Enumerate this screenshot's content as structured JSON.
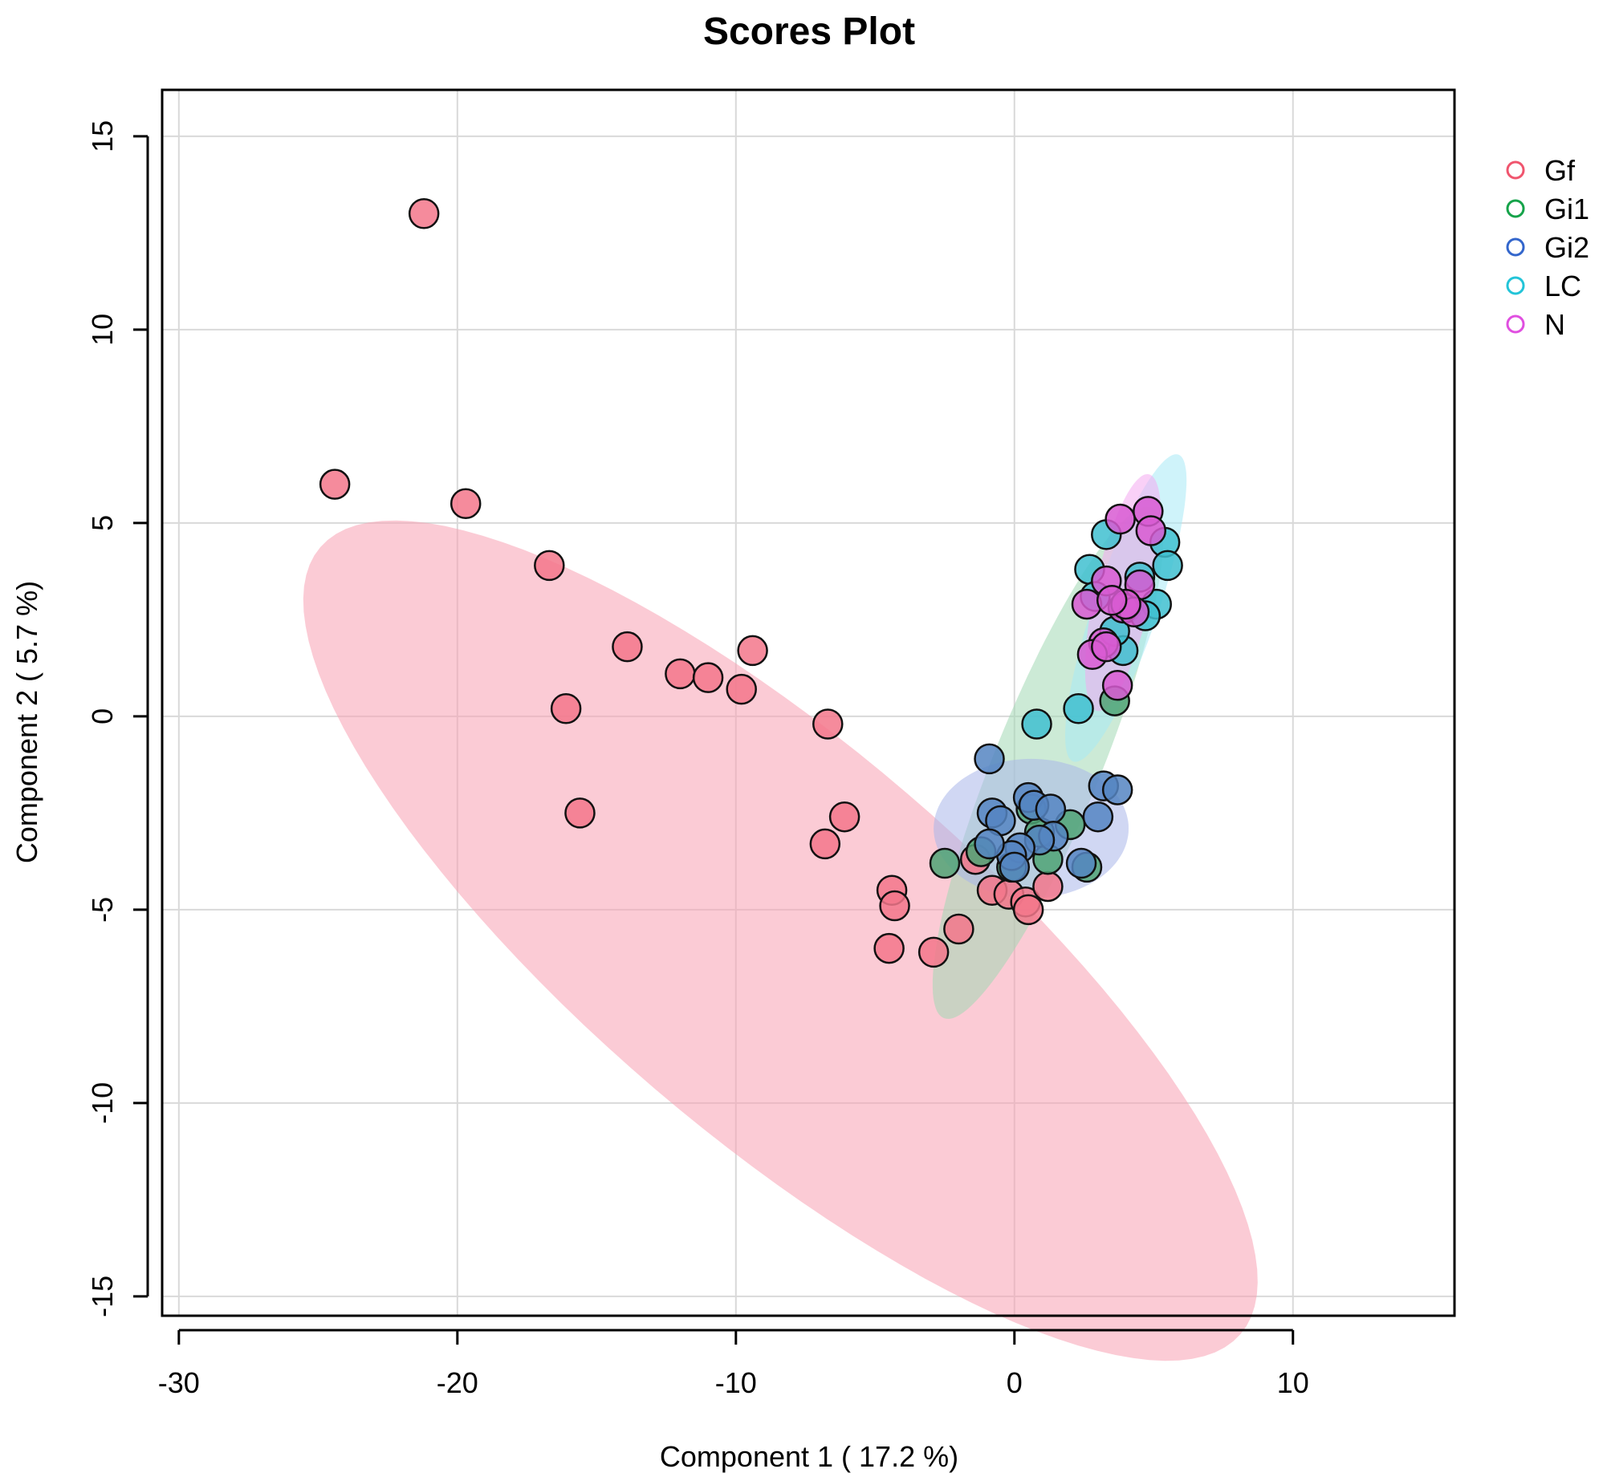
{
  "chart_data": {
    "type": "scatter",
    "title": "Scores Plot",
    "xlabel": "Component 1 ( 17.2 %)",
    "ylabel": "Component 2 ( 5.7 %)",
    "xlim": [
      -30.6,
      15.8
    ],
    "ylim": [
      -15.5,
      16.2
    ],
    "xticks": [
      -30,
      -20,
      -10,
      0,
      10
    ],
    "yticks": [
      -15,
      -10,
      -5,
      0,
      5,
      10,
      15
    ],
    "grid": true,
    "legend_position": "right",
    "series": [
      {
        "name": "Gf",
        "color": "#F0556E",
        "fill": "#F3778B",
        "points": [
          [
            -21.2,
            13.0
          ],
          [
            -24.4,
            6.0
          ],
          [
            -19.7,
            5.5
          ],
          [
            -16.7,
            3.9
          ],
          [
            -13.9,
            1.8
          ],
          [
            -9.4,
            1.7
          ],
          [
            -12.0,
            1.1
          ],
          [
            -11.0,
            1.0
          ],
          [
            -9.8,
            0.7
          ],
          [
            -16.1,
            0.2
          ],
          [
            -6.7,
            -0.2
          ],
          [
            -15.6,
            -2.5
          ],
          [
            -6.1,
            -2.6
          ],
          [
            -6.8,
            -3.3
          ],
          [
            -4.4,
            -4.5
          ],
          [
            -4.3,
            -4.9
          ],
          [
            -4.5,
            -6.0
          ],
          [
            -2.9,
            -6.1
          ],
          [
            -2.0,
            -5.5
          ],
          [
            -0.8,
            -4.5
          ],
          [
            -0.2,
            -4.6
          ],
          [
            0.4,
            -4.8
          ],
          [
            0.5,
            -5.0
          ],
          [
            1.2,
            -4.4
          ],
          [
            -1.4,
            -3.7
          ]
        ]
      },
      {
        "name": "Gi1",
        "color": "#16A34A",
        "fill": "#4FA374",
        "points": [
          [
            -2.5,
            -3.8
          ],
          [
            -1.2,
            -3.5
          ],
          [
            -0.1,
            -3.9
          ],
          [
            0.6,
            -2.4
          ],
          [
            1.2,
            -3.7
          ],
          [
            2.0,
            -2.8
          ],
          [
            0.9,
            -3.0
          ],
          [
            2.6,
            -3.9
          ],
          [
            3.6,
            0.4
          ],
          [
            4.0,
            2.8
          ]
        ]
      },
      {
        "name": "Gi2",
        "color": "#3366CC",
        "fill": "#5585C2",
        "points": [
          [
            -0.9,
            -1.1
          ],
          [
            -0.8,
            -2.5
          ],
          [
            -0.5,
            -2.7
          ],
          [
            0.5,
            -2.1
          ],
          [
            0.7,
            -2.3
          ],
          [
            1.3,
            -2.4
          ],
          [
            1.4,
            -3.1
          ],
          [
            0.9,
            -3.2
          ],
          [
            0.2,
            -3.4
          ],
          [
            -0.1,
            -3.6
          ],
          [
            -0.9,
            -3.3
          ],
          [
            2.4,
            -3.8
          ],
          [
            3.0,
            -2.6
          ],
          [
            3.2,
            -1.8
          ],
          [
            3.7,
            -1.9
          ],
          [
            0.0,
            -3.9
          ]
        ]
      },
      {
        "name": "LC",
        "color": "#22C4D8",
        "fill": "#3FBFD0",
        "points": [
          [
            0.8,
            -0.2
          ],
          [
            2.3,
            0.2
          ],
          [
            2.7,
            3.8
          ],
          [
            3.3,
            4.7
          ],
          [
            5.4,
            4.5
          ],
          [
            5.5,
            3.9
          ],
          [
            4.5,
            3.6
          ],
          [
            5.1,
            2.9
          ],
          [
            3.9,
            1.7
          ],
          [
            3.6,
            2.2
          ],
          [
            2.9,
            3.1
          ],
          [
            4.7,
            2.6
          ]
        ]
      },
      {
        "name": "N",
        "color": "#E04FE0",
        "fill": "#D85BD2",
        "points": [
          [
            3.8,
            5.1
          ],
          [
            4.8,
            5.3
          ],
          [
            4.9,
            4.8
          ],
          [
            3.3,
            3.5
          ],
          [
            4.5,
            3.4
          ],
          [
            2.6,
            2.9
          ],
          [
            3.9,
            2.8
          ],
          [
            4.3,
            2.7
          ],
          [
            3.2,
            1.9
          ],
          [
            2.8,
            1.6
          ],
          [
            3.3,
            1.8
          ],
          [
            3.7,
            0.8
          ],
          [
            4.0,
            2.9
          ],
          [
            3.5,
            3.0
          ]
        ]
      }
    ],
    "ellipses": [
      {
        "group": "Gf",
        "center": [
          -8.4,
          -5.8
        ],
        "semi_axes": [
          19.5,
          5.6
        ],
        "angle_deg": -29.9,
        "fill": "#F7A1B3"
      },
      {
        "group": "Gi1",
        "center": [
          1.2,
          -1.2
        ],
        "semi_axes": [
          7.6,
          1.8
        ],
        "angle_deg": 59.7,
        "fill": "#A3D9B4"
      },
      {
        "group": "Gi2",
        "center": [
          0.6,
          -2.9
        ],
        "semi_axes": [
          3.5,
          1.8
        ],
        "angle_deg": 0,
        "fill": "#A9B7EA"
      },
      {
        "group": "LC",
        "center": [
          4.0,
          2.8
        ],
        "semi_axes": [
          4.4,
          1.1
        ],
        "angle_deg": 63.8,
        "fill": "#A8E9F5"
      },
      {
        "group": "N",
        "center": [
          3.9,
          3.2
        ],
        "semi_axes": [
          3.2,
          1.0
        ],
        "angle_deg": 72.3,
        "fill": "#F4A9F1"
      }
    ]
  }
}
